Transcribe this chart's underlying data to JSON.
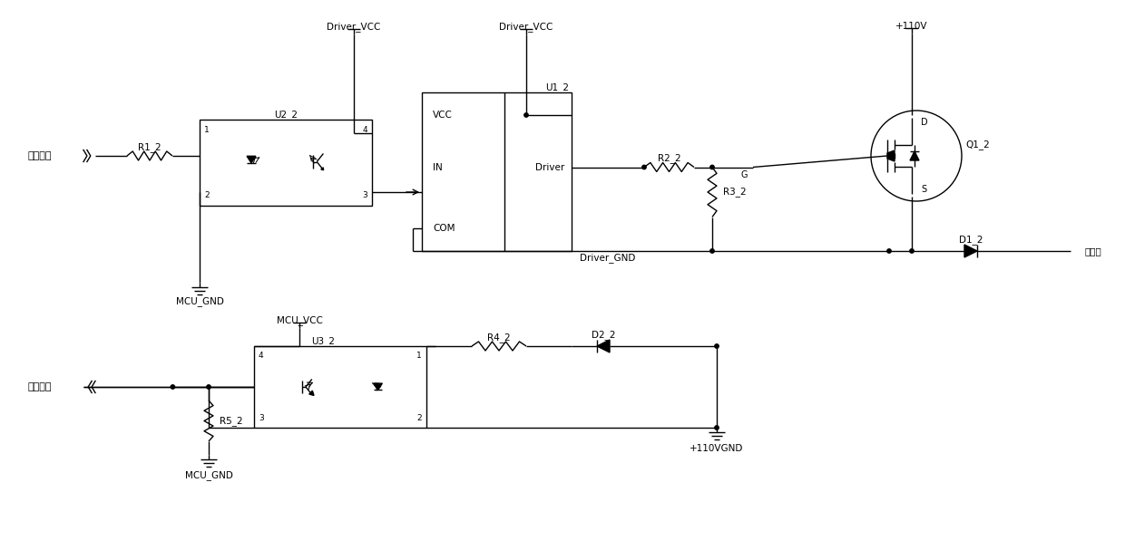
{
  "bg": "#ffffff",
  "lc": "#000000",
  "lw": 1.0,
  "fs": 7.5,
  "labels": {
    "feedback": "反馈信号",
    "drive": "驱动信号",
    "mcu_gnd1": "MCU_GND",
    "mcu_gnd2": "MCU_GND",
    "mcu_vcc": "MCU_VCC",
    "dvcc1": "Driver_VCC",
    "dvcc2": "Driver_VCC",
    "dgnd": "Driver_GND",
    "v110": "+110V",
    "v110gnd": "+110VGND",
    "out": "输出端",
    "r1": "R1_2",
    "r2": "R2_2",
    "r3": "R3_2",
    "r4": "R4_2",
    "r5": "R5_2",
    "u1": "U1_2",
    "u2": "U2_2",
    "u3": "U3_2",
    "q1": "Q1_2",
    "d1": "D1_2",
    "d2": "D2_2",
    "vcc": "VCC",
    "in_": "IN",
    "driver_lbl": "Driver",
    "com": "COM",
    "d_pin": "D",
    "g_pin": "G",
    "s_pin": "S"
  }
}
